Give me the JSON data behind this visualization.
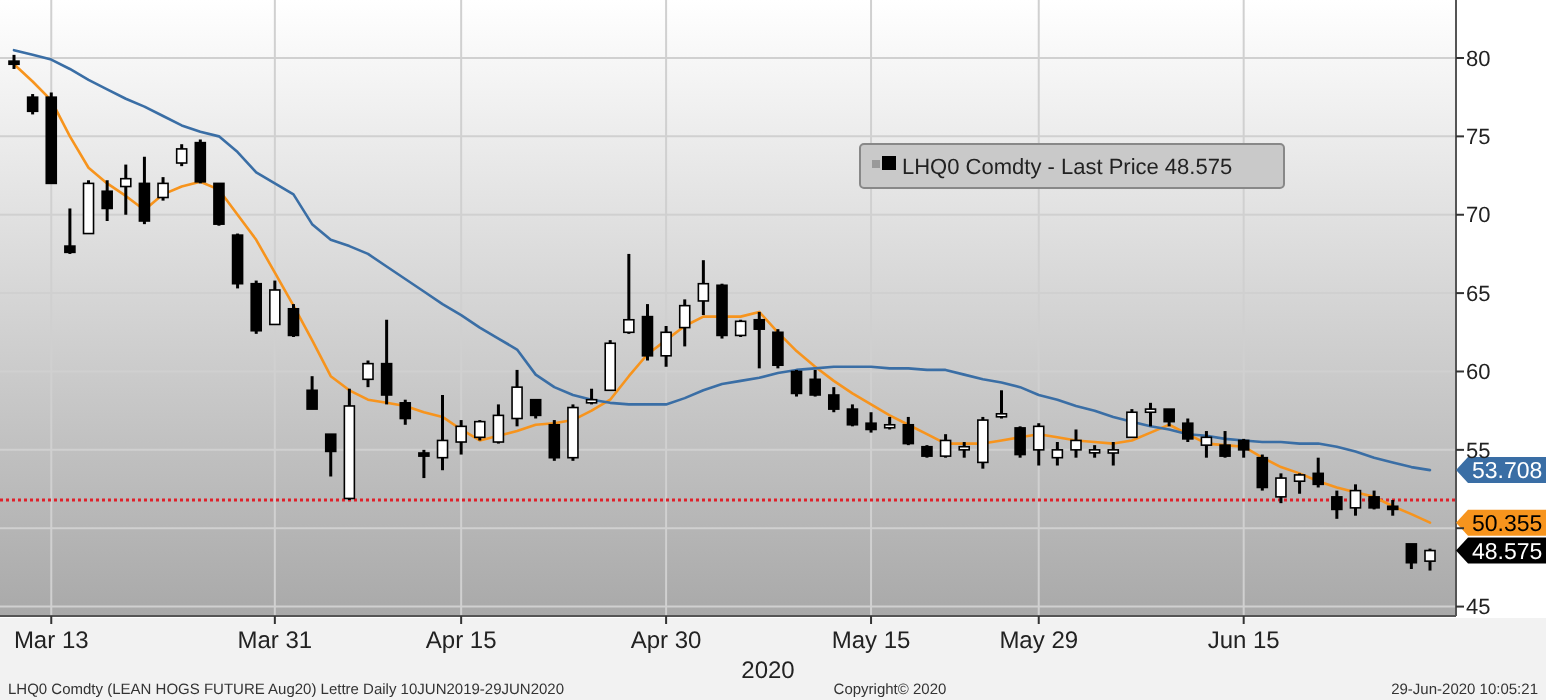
{
  "chart_data": {
    "type": "candlestick",
    "xlabel": "2020",
    "categories": [
      null,
      null,
      "Mar 13",
      null,
      null,
      null,
      null,
      null,
      null,
      null,
      null,
      null,
      null,
      null,
      "Mar 31",
      null,
      null,
      null,
      null,
      null,
      null,
      null,
      null,
      null,
      "Apr 15",
      null,
      null,
      null,
      null,
      null,
      null,
      null,
      null,
      null,
      null,
      "Apr 30",
      null,
      null,
      null,
      null,
      null,
      null,
      null,
      null,
      null,
      null,
      "May 15",
      null,
      null,
      null,
      null,
      null,
      null,
      null,
      null,
      "May 29",
      null,
      null,
      null,
      null,
      null,
      null,
      null,
      null,
      null,
      null,
      "Jun 15",
      null,
      null,
      null,
      null,
      null,
      null,
      null,
      null,
      null,
      null
    ],
    "ylim": [
      44.4,
      83.7
    ],
    "yticks": [
      45,
      {
        "value": 50,
        "label": null
      },
      55,
      60,
      65,
      70,
      75,
      80
    ],
    "grid": true,
    "legend": "top right",
    "series": [
      {
        "type": "candlestick",
        "name": "LHQ0 Comdty - Last Price 48.575",
        "color": "#000000",
        "ohlc": [
          [
            79.8,
            80.2,
            79.3,
            79.6
          ],
          [
            77.5,
            77.7,
            76.4,
            76.6
          ],
          [
            77.5,
            77.8,
            72,
            72
          ],
          [
            68,
            70.4,
            67.5,
            67.6
          ],
          [
            68.8,
            72.2,
            68.8,
            72
          ],
          [
            71.5,
            72.2,
            69.6,
            70.4
          ],
          [
            71.8,
            73.2,
            70,
            72.3
          ],
          [
            72,
            73.7,
            69.4,
            69.6
          ],
          [
            71.1,
            72.4,
            70.9,
            72
          ],
          [
            73.3,
            74.5,
            73.1,
            74.2
          ],
          [
            74.6,
            74.8,
            72,
            72.1
          ],
          [
            72,
            72,
            69.3,
            69.4
          ],
          [
            68.7,
            68.8,
            65.3,
            65.6
          ],
          [
            65.6,
            65.8,
            62.4,
            62.6
          ],
          [
            63,
            65.8,
            63,
            65.2
          ],
          [
            64,
            64.3,
            62.2,
            62.3
          ],
          [
            58.8,
            59.7,
            57.6,
            57.6
          ],
          [
            56,
            56,
            53.3,
            54.9
          ],
          [
            51.9,
            58.9,
            51.8,
            57.8
          ],
          [
            59.5,
            60.7,
            59,
            60.5
          ],
          [
            60.5,
            63.3,
            57.9,
            58.5
          ],
          [
            58,
            58.2,
            56.6,
            57
          ],
          [
            54.8,
            55,
            53.2,
            54.6
          ],
          [
            54.5,
            58.5,
            53.7,
            55.6
          ],
          [
            55.5,
            56.9,
            54.7,
            56.5
          ],
          [
            55.8,
            56.9,
            55.6,
            56.8
          ],
          [
            55.5,
            57.9,
            55.4,
            57.2
          ],
          [
            57,
            60.1,
            56.5,
            59
          ],
          [
            58.2,
            58.2,
            57,
            57.2
          ],
          [
            56.6,
            56.9,
            54.3,
            54.5
          ],
          [
            54.5,
            57.9,
            54.3,
            57.7
          ],
          [
            58,
            58.9,
            57.9,
            58.2
          ],
          [
            58.8,
            62,
            58.8,
            61.8
          ],
          [
            62.5,
            67.5,
            62.4,
            63.3
          ],
          [
            63.5,
            64.3,
            60.7,
            61
          ],
          [
            61,
            62.9,
            60.3,
            62.5
          ],
          [
            62.8,
            64.6,
            61.6,
            64.2
          ],
          [
            64.5,
            67.1,
            63.6,
            65.6
          ],
          [
            65.5,
            65.6,
            62.1,
            62.3
          ],
          [
            62.3,
            63.3,
            62.2,
            63.2
          ],
          [
            63.3,
            63.8,
            60.2,
            62.7
          ],
          [
            62.5,
            62.7,
            60.2,
            60.4
          ],
          [
            60,
            60.1,
            58.4,
            58.6
          ],
          [
            59.5,
            60.1,
            58.4,
            58.5
          ],
          [
            58.5,
            59,
            57.4,
            57.6
          ],
          [
            57.6,
            57.9,
            56.5,
            56.6
          ],
          [
            56.7,
            57.4,
            56.1,
            56.3
          ],
          [
            56.5,
            57.1,
            56.3,
            56.6
          ],
          [
            56.6,
            57.1,
            55.3,
            55.4
          ],
          [
            55.2,
            55.3,
            54.5,
            54.6
          ],
          [
            54.6,
            56,
            54.5,
            55.6
          ],
          [
            55,
            55.5,
            54.5,
            55.2
          ],
          [
            54.2,
            57.1,
            53.8,
            56.9
          ],
          [
            57.2,
            58.8,
            57,
            57.3
          ],
          [
            56.4,
            56.5,
            54.5,
            54.7
          ],
          [
            55,
            56.7,
            54,
            56.5
          ],
          [
            54.5,
            55.5,
            54,
            55
          ],
          [
            55,
            56.3,
            54.5,
            55.6
          ],
          [
            55,
            55.3,
            54.5,
            55
          ],
          [
            54.8,
            55.5,
            54,
            55
          ],
          [
            55.8,
            57.6,
            55.8,
            57.4
          ],
          [
            57.4,
            58,
            56.5,
            57.6
          ],
          [
            57.6,
            57.6,
            56.5,
            56.8
          ],
          [
            56.7,
            57,
            55.5,
            55.7
          ],
          [
            55.3,
            56.2,
            54.5,
            55.8
          ],
          [
            55.3,
            56.2,
            54.5,
            54.6
          ],
          [
            55.6,
            55.7,
            54.5,
            55
          ],
          [
            54.5,
            54.7,
            52.4,
            52.6
          ],
          [
            52,
            53.5,
            51.6,
            53.2
          ],
          [
            53,
            53.5,
            52.2,
            53.4
          ],
          [
            53.5,
            54.5,
            52.6,
            52.8
          ],
          [
            52,
            52.4,
            50.6,
            51.2
          ],
          [
            51.3,
            52.8,
            50.8,
            52.4
          ],
          [
            52,
            52.4,
            51.2,
            51.3
          ],
          [
            51.4,
            51.8,
            50.8,
            51.2
          ],
          [
            49,
            49,
            47.4,
            47.8
          ],
          [
            47.9,
            48.7,
            47.3,
            48.575
          ]
        ],
        "value_labels": [
          null,
          null,
          null,
          null,
          null,
          null,
          null,
          null,
          null,
          null,
          null,
          null,
          null,
          null,
          null,
          null,
          null,
          null,
          null,
          null,
          null,
          null,
          null,
          null,
          null,
          null,
          null,
          null,
          null,
          null,
          null,
          null,
          null,
          null,
          null,
          null,
          null,
          null,
          null,
          null,
          null,
          null,
          null,
          null,
          null,
          null,
          null,
          null,
          null,
          null,
          null,
          null,
          null,
          null,
          null,
          null,
          null,
          null,
          null,
          null,
          null,
          null,
          null,
          null,
          null,
          null,
          null,
          null,
          null,
          null,
          null,
          null,
          null,
          null,
          null,
          null,
          "48.575"
        ]
      },
      {
        "type": "line",
        "color": "#f7941d",
        "values": [
          79.6,
          78.5,
          77.3,
          75,
          73,
          72,
          71.2,
          70.3,
          71.3,
          71.8,
          72.1,
          71.6,
          70,
          68.4,
          66.3,
          64.2,
          62,
          59.7,
          58.8,
          58.2,
          58,
          57.8,
          57.4,
          57.1,
          56.3,
          55.6,
          55.9,
          56.2,
          56.6,
          56.7,
          56.9,
          57.5,
          58.2,
          59.7,
          61.1,
          62,
          62.9,
          63.5,
          63.5,
          63.5,
          63.8,
          62.5,
          61.3,
          60.3,
          59.4,
          58.6,
          57.9,
          57.2,
          56.6,
          56,
          55.4,
          55.4,
          55.4,
          55.6,
          55.8,
          56,
          55.8,
          55.6,
          55.5,
          55.4,
          55.6,
          56.1,
          56.6,
          56,
          55.4,
          55.3,
          55.2,
          54.5,
          53.9,
          53.5,
          53,
          52.6,
          52.3,
          52,
          51.4,
          50.9,
          50.355
        ],
        "value_labels": [
          null,
          null,
          null,
          null,
          null,
          null,
          null,
          null,
          null,
          null,
          null,
          null,
          null,
          null,
          null,
          null,
          null,
          null,
          null,
          null,
          null,
          null,
          null,
          null,
          null,
          null,
          null,
          null,
          null,
          null,
          null,
          null,
          null,
          null,
          null,
          null,
          null,
          null,
          null,
          null,
          null,
          null,
          null,
          null,
          null,
          null,
          null,
          null,
          null,
          null,
          null,
          null,
          null,
          null,
          null,
          null,
          null,
          null,
          null,
          null,
          null,
          null,
          null,
          null,
          null,
          null,
          null,
          null,
          null,
          null,
          null,
          null,
          null,
          null,
          null,
          null,
          "50.355"
        ]
      },
      {
        "type": "line",
        "color": "#3a6ea5",
        "values": [
          80.5,
          80.2,
          79.9,
          79.3,
          78.6,
          78,
          77.4,
          76.9,
          76.3,
          75.7,
          75.3,
          75,
          74,
          72.7,
          72,
          71.3,
          69.4,
          68.4,
          68,
          67.5,
          66.7,
          65.9,
          65.1,
          64.3,
          63.6,
          62.8,
          62.1,
          61.4,
          59.8,
          59,
          58.5,
          58.2,
          58,
          57.9,
          57.9,
          57.9,
          58.3,
          58.8,
          59.2,
          59.4,
          59.6,
          59.9,
          60.1,
          60.2,
          60.3,
          60.3,
          60.3,
          60.2,
          60.2,
          60.1,
          60.1,
          59.8,
          59.5,
          59.3,
          59,
          58.5,
          58.2,
          57.8,
          57.5,
          57.1,
          56.8,
          56.5,
          56.3,
          56,
          55.9,
          55.7,
          55.6,
          55.5,
          55.5,
          55.4,
          55.4,
          55.2,
          54.9,
          54.5,
          54.2,
          53.9,
          53.708
        ],
        "value_labels": [
          null,
          null,
          null,
          null,
          null,
          null,
          null,
          null,
          null,
          null,
          null,
          null,
          null,
          null,
          null,
          null,
          null,
          null,
          null,
          null,
          null,
          null,
          null,
          null,
          null,
          null,
          null,
          null,
          null,
          null,
          null,
          null,
          null,
          null,
          null,
          null,
          null,
          null,
          null,
          null,
          null,
          null,
          null,
          null,
          null,
          null,
          null,
          null,
          null,
          null,
          null,
          null,
          null,
          null,
          null,
          null,
          null,
          null,
          null,
          null,
          null,
          null,
          null,
          null,
          null,
          null,
          null,
          null,
          null,
          null,
          null,
          null,
          null,
          null,
          null,
          null,
          "53.708"
        ]
      }
    ],
    "ref_lines": [
      {
        "axis": "y",
        "value": 51.8,
        "color": "#e0202a",
        "line_style": "dotted"
      }
    ],
    "annotations": [
      "LHQ0 Comdty (LEAN HOGS FUTURE  Aug20) Lettre  Daily 10JUN2019-29JUN2020",
      "Copyright© 2020",
      "29-Jun-2020 10:05:21"
    ]
  }
}
